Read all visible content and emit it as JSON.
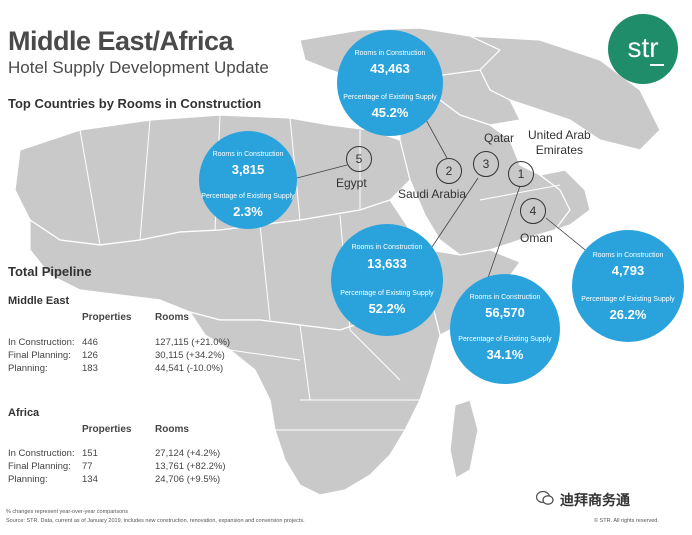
{
  "header": {
    "title": "Middle East/Africa",
    "subtitle": "Hotel Supply Development Update",
    "section_title": "Top Countries by Rooms in Construction"
  },
  "logo": {
    "text": "str",
    "color": "#1f8c6a"
  },
  "bubble_labels": {
    "rooms": "Rooms in Construction",
    "pct": "Percentage of Existing Supply"
  },
  "countries": [
    {
      "rank": "1",
      "name": "United Arab Emirates",
      "name_line1": "United Arab",
      "name_line2": "Emirates",
      "rooms": "56,570",
      "pct": "34.1%"
    },
    {
      "rank": "2",
      "name": "Saudi Arabia",
      "rooms": "43,463",
      "pct": "45.2%"
    },
    {
      "rank": "3",
      "name": "Qatar",
      "rooms": "13,633",
      "pct": "52.2%"
    },
    {
      "rank": "4",
      "name": "Oman",
      "rooms": "4,793",
      "pct": "26.2%"
    },
    {
      "rank": "5",
      "name": "Egypt",
      "rooms": "3,815",
      "pct": "2.3%"
    }
  ],
  "pipeline": {
    "title": "Total Pipeline",
    "columns": {
      "properties": "Properties",
      "rooms": "Rooms"
    },
    "regions": [
      {
        "name": "Middle East",
        "rows": [
          {
            "label": "In Construction:",
            "properties": "446",
            "rooms": "127,115 (+21.0%)"
          },
          {
            "label": "Final Planning:",
            "properties": "126",
            "rooms": "30,115 (+34.2%)"
          },
          {
            "label": "Planning:",
            "properties": "183",
            "rooms": "44,541 (-10.0%)"
          }
        ]
      },
      {
        "name": "Africa",
        "rows": [
          {
            "label": "In Construction:",
            "properties": "151",
            "rooms": "27,124 (+4.2%)"
          },
          {
            "label": "Final Planning:",
            "properties": "77",
            "rooms": "13,761 (+82.2%)"
          },
          {
            "label": "Planning:",
            "properties": "134",
            "rooms": "24,706 (+9.5%)"
          }
        ]
      }
    ]
  },
  "footnotes": {
    "line1": "% changes represent year-over-year comparisons",
    "line2": "Source: STR. Data, current as of January 2019, includes new construction, renovation, expansion and conversion projects.",
    "copyright": "© STR. All rights reserved."
  },
  "watermark": "迪拜商务通",
  "colors": {
    "bubble": "#2aa3dc",
    "land": "#c9c9c9",
    "border": "#ffffff",
    "text": "#3a3a3a"
  }
}
